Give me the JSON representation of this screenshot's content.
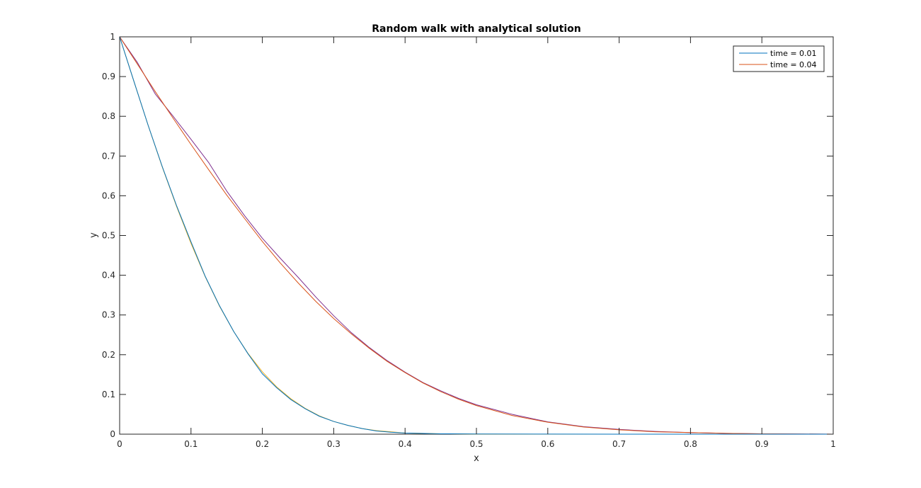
{
  "chart_data": {
    "type": "line",
    "title": "Random walk with analytical solution",
    "xlabel": "x",
    "ylabel": "y",
    "xlim": [
      0,
      1
    ],
    "ylim": [
      0,
      1
    ],
    "xticks": [
      "0",
      "0.1",
      "0.2",
      "0.3",
      "0.4",
      "0.5",
      "0.6",
      "0.7",
      "0.8",
      "0.9",
      "1"
    ],
    "yticks": [
      "0",
      "0.1",
      "0.2",
      "0.3",
      "0.4",
      "0.5",
      "0.6",
      "0.7",
      "0.8",
      "0.9",
      "1"
    ],
    "grid": false,
    "legend_position": "top-right",
    "series": [
      {
        "name": "time = 0.01",
        "color": "#0072bd",
        "x": [
          0,
          0.02,
          0.04,
          0.06,
          0.08,
          0.1,
          0.12,
          0.14,
          0.16,
          0.18,
          0.2,
          0.22,
          0.24,
          0.26,
          0.28,
          0.3,
          0.32,
          0.34,
          0.36,
          0.38,
          0.4,
          0.45,
          0.5,
          0.6,
          0.7,
          0.8,
          0.9,
          1
        ],
        "values": [
          1,
          0.888,
          0.777,
          0.672,
          0.574,
          0.484,
          0.397,
          0.323,
          0.258,
          0.202,
          0.152,
          0.117,
          0.087,
          0.064,
          0.045,
          0.032,
          0.022,
          0.014,
          0.008,
          0.005,
          0.003,
          0.001,
          0.0005,
          0.0002,
          0,
          0,
          0,
          0
        ]
      },
      {
        "name": "time = 0.04",
        "color": "#d95319",
        "x": [
          0,
          0.025,
          0.05,
          0.075,
          0.1,
          0.125,
          0.15,
          0.175,
          0.2,
          0.225,
          0.25,
          0.275,
          0.3,
          0.325,
          0.35,
          0.375,
          0.4,
          0.425,
          0.45,
          0.475,
          0.5,
          0.55,
          0.6,
          0.65,
          0.7,
          0.75,
          0.8,
          0.85,
          0.9,
          0.95,
          1
        ],
        "values": [
          1,
          0.931,
          0.862,
          0.795,
          0.729,
          0.665,
          0.602,
          0.543,
          0.485,
          0.431,
          0.381,
          0.334,
          0.291,
          0.252,
          0.216,
          0.183,
          0.155,
          0.129,
          0.107,
          0.088,
          0.072,
          0.047,
          0.03,
          0.018,
          0.011,
          0.006,
          0.004,
          0.002,
          0.001,
          0.0005,
          0
        ]
      },
      {
        "color": "#edb120",
        "x": [
          0,
          0.02,
          0.04,
          0.06,
          0.08,
          0.1,
          0.12,
          0.14,
          0.16,
          0.18,
          0.2,
          0.22,
          0.24,
          0.26,
          0.28,
          0.3,
          0.32,
          0.34,
          0.36,
          0.38,
          0.4,
          0.45,
          0.5,
          0.6,
          0.7,
          0.8,
          0.9,
          1
        ],
        "values": [
          1,
          0.888,
          0.777,
          0.671,
          0.572,
          0.48,
          0.396,
          0.322,
          0.258,
          0.203,
          0.157,
          0.119,
          0.089,
          0.065,
          0.046,
          0.032,
          0.022,
          0.014,
          0.009,
          0.006,
          0.003,
          0.001,
          0.0003,
          0,
          0,
          0,
          0,
          0
        ]
      },
      {
        "color": "#7e2f8e",
        "x": [
          0,
          0.025,
          0.05,
          0.075,
          0.1,
          0.125,
          0.15,
          0.175,
          0.2,
          0.225,
          0.25,
          0.275,
          0.3,
          0.325,
          0.35,
          0.375,
          0.4,
          0.425,
          0.45,
          0.475,
          0.5,
          0.55,
          0.6,
          0.65,
          0.7,
          0.75,
          0.8,
          0.85,
          0.9,
          0.95,
          1
        ],
        "values": [
          1,
          0.935,
          0.856,
          0.8,
          0.742,
          0.683,
          0.612,
          0.55,
          0.493,
          0.443,
          0.395,
          0.345,
          0.298,
          0.255,
          0.218,
          0.185,
          0.156,
          0.13,
          0.109,
          0.09,
          0.074,
          0.05,
          0.031,
          0.019,
          0.012,
          0.007,
          0.004,
          0.002,
          0.001,
          0.0005,
          0
        ]
      }
    ]
  }
}
